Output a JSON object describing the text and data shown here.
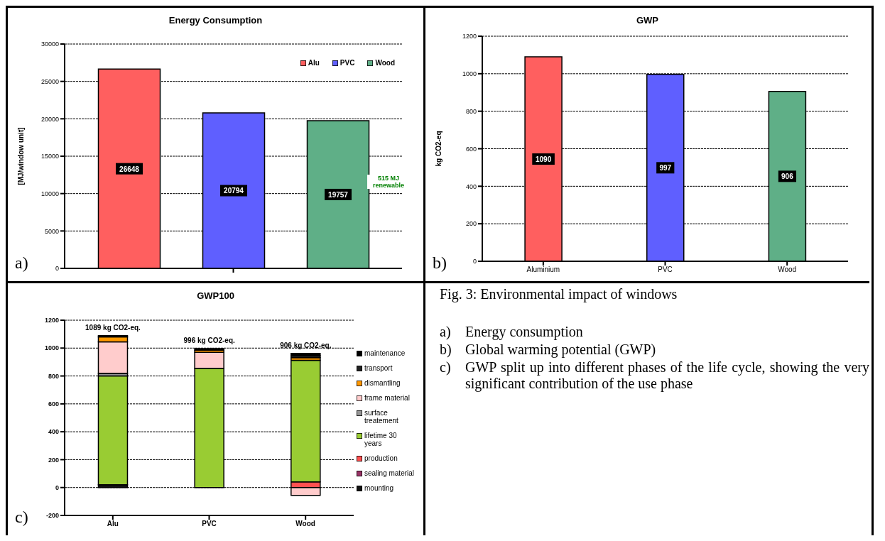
{
  "chart_data": [
    {
      "type": "bar",
      "title": "Energy Consumption",
      "ylabel": "[MJ/window unit]",
      "categories": [
        null
      ],
      "series": [
        {
          "name": "Alu",
          "color": "#ff5f5f",
          "values": [
            26648
          ]
        },
        {
          "name": "PVC",
          "color": "#5f5fff",
          "values": [
            20794
          ]
        },
        {
          "name": "Wood",
          "color": "#5faf87",
          "values": [
            19757
          ]
        }
      ],
      "ylim": [
        0,
        30000
      ],
      "yticks": [
        0,
        5000,
        10000,
        15000,
        20000,
        25000,
        30000
      ],
      "grid": "y",
      "legend": "top right",
      "data_labels": true,
      "annotations": [
        "a)",
        "515 MJ renewable"
      ]
    },
    {
      "type": "bar",
      "title": "GWP",
      "ylabel": "kg CO2-eq",
      "categories": [
        "Aluminium",
        "PVC",
        "Wood"
      ],
      "values": [
        1090,
        997,
        906
      ],
      "colors": [
        "#ff5f5f",
        "#5f5fff",
        "#5faf87"
      ],
      "ylim": [
        0,
        1200
      ],
      "yticks": [
        0,
        200,
        400,
        600,
        800,
        1000,
        1200
      ],
      "grid": "y",
      "data_labels": true,
      "annotations": [
        "b)"
      ]
    },
    {
      "type": "bar",
      "title": "GWP100",
      "categories": [
        "Alu",
        "PVC",
        "Wood"
      ],
      "stacked": true,
      "series": [
        {
          "name": "mounting",
          "color": "#111111",
          "values": [
            20,
            null,
            null
          ]
        },
        {
          "name": "sealing material",
          "color": "#993366",
          "values": [
            null,
            null,
            null
          ]
        },
        {
          "name": "production",
          "color": "#ff5050",
          "values": [
            null,
            null,
            40
          ]
        },
        {
          "name": "lifetime 30 years",
          "color": "#99cc33",
          "values": [
            780,
            855,
            872
          ]
        },
        {
          "name": "surface treatement",
          "color": "#969696",
          "values": [
            20,
            null,
            null
          ]
        },
        {
          "name": "frame material",
          "color": "#ffcccc",
          "values": [
            225,
            115,
            -56
          ]
        },
        {
          "name": "dismantling",
          "color": "#ff9900",
          "values": [
            35,
            15,
            20
          ]
        },
        {
          "name": "transport",
          "color": "#222222",
          "values": [
            null,
            null,
            13
          ]
        },
        {
          "name": "maintenance",
          "color": "#000000",
          "values": [
            9,
            11,
            17
          ]
        }
      ],
      "ylim": [
        -200,
        1200
      ],
      "yticks": [
        -200,
        0,
        200,
        400,
        600,
        800,
        1000,
        1200
      ],
      "grid": "y",
      "legend": "right",
      "totals": [
        "1089 kg CO2-eq.",
        "996 kg CO2-eq.",
        "906 kg CO2-eq."
      ],
      "annotations": [
        "c)"
      ]
    },
    {
      "type": "other",
      "title": "Fig. 3: Environmental impact of windows",
      "annotations": [
        "a)\tEnergy consumption",
        "b)\tGlobal warming potential (GWP)",
        "c)\tGWP split up into different phases of the life cycle, showing the very significant contribution of the use phase"
      ]
    }
  ]
}
